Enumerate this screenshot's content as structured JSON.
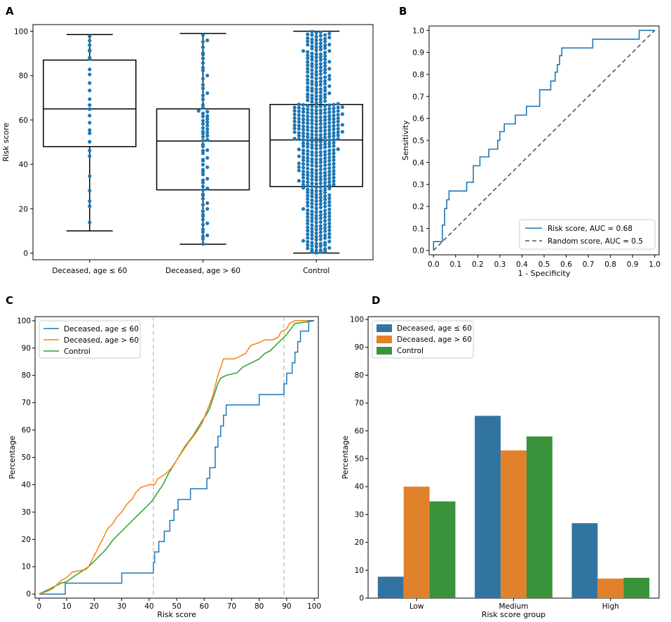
{
  "figure": {
    "panels": {
      "a": "A",
      "b": "B",
      "c": "C",
      "d": "D"
    }
  },
  "chart_data": [
    {
      "id": "A",
      "type": "scatter",
      "title": "",
      "xlabel": "",
      "ylabel": "Risk score",
      "ylim": [
        -3,
        103
      ],
      "yticks": [
        0,
        20,
        40,
        60,
        80,
        100
      ],
      "categories": [
        "Deceased, age ≤ 60",
        "Deceased, age > 60",
        "Control"
      ],
      "boxplots": [
        {
          "category": "Deceased, age ≤ 60",
          "whisker_low": 10,
          "q1": 48,
          "median": 65,
          "q3": 87,
          "whisker_high": 98.5
        },
        {
          "category": "Deceased, age > 60",
          "whisker_low": 4,
          "q1": 28.5,
          "median": 50.5,
          "q3": 65,
          "whisker_high": 99
        },
        {
          "category": "Control",
          "whisker_low": 0,
          "q1": 30,
          "median": 51,
          "q3": 67,
          "whisker_high": 100
        }
      ],
      "swarm_counts": [
        26,
        75,
        460
      ],
      "point_color": "#1f77b4"
    },
    {
      "id": "B",
      "type": "line",
      "title": "",
      "xlabel": "1 - Specificity",
      "ylabel": "Sensitivity",
      "xlim": [
        -0.02,
        1.02
      ],
      "ylim": [
        -0.02,
        1.02
      ],
      "ticks": [
        0.0,
        0.1,
        0.2,
        0.3,
        0.4,
        0.5,
        0.6,
        0.7,
        0.8,
        0.9,
        1.0
      ],
      "legend_position": "lower-right",
      "series": [
        {
          "name": "Risk score, AUC = 0.68",
          "color": "#1f77b4",
          "dash": false,
          "points": [
            [
              0,
              0
            ],
            [
              0,
              0.04
            ],
            [
              0.04,
              0.04
            ],
            [
              0.04,
              0.115
            ],
            [
              0.05,
              0.115
            ],
            [
              0.05,
              0.19
            ],
            [
              0.06,
              0.19
            ],
            [
              0.06,
              0.23
            ],
            [
              0.07,
              0.23
            ],
            [
              0.07,
              0.27
            ],
            [
              0.15,
              0.27
            ],
            [
              0.15,
              0.31
            ],
            [
              0.18,
              0.31
            ],
            [
              0.18,
              0.385
            ],
            [
              0.21,
              0.385
            ],
            [
              0.21,
              0.425
            ],
            [
              0.25,
              0.425
            ],
            [
              0.25,
              0.46
            ],
            [
              0.29,
              0.46
            ],
            [
              0.29,
              0.5
            ],
            [
              0.3,
              0.5
            ],
            [
              0.3,
              0.54
            ],
            [
              0.32,
              0.54
            ],
            [
              0.32,
              0.575
            ],
            [
              0.37,
              0.575
            ],
            [
              0.37,
              0.615
            ],
            [
              0.42,
              0.615
            ],
            [
              0.42,
              0.655
            ],
            [
              0.48,
              0.655
            ],
            [
              0.48,
              0.73
            ],
            [
              0.53,
              0.73
            ],
            [
              0.53,
              0.77
            ],
            [
              0.55,
              0.77
            ],
            [
              0.55,
              0.81
            ],
            [
              0.56,
              0.81
            ],
            [
              0.56,
              0.845
            ],
            [
              0.57,
              0.845
            ],
            [
              0.57,
              0.885
            ],
            [
              0.58,
              0.885
            ],
            [
              0.58,
              0.92
            ],
            [
              0.72,
              0.92
            ],
            [
              0.72,
              0.96
            ],
            [
              0.93,
              0.96
            ],
            [
              0.93,
              1.0
            ],
            [
              1.0,
              1.0
            ]
          ]
        },
        {
          "name": "Random score, AUC = 0.5",
          "color": "#555555",
          "dash": true,
          "points": [
            [
              0,
              0
            ],
            [
              1,
              1
            ]
          ]
        }
      ]
    },
    {
      "id": "C",
      "type": "line",
      "title": "",
      "xlabel": "Risk score",
      "ylabel": "Percentage",
      "xlim": [
        -1.5,
        101.5
      ],
      "ylim": [
        -1.5,
        101.5
      ],
      "xticks": [
        0,
        10,
        20,
        30,
        40,
        50,
        60,
        70,
        80,
        90,
        100
      ],
      "yticks": [
        0,
        10,
        20,
        30,
        40,
        50,
        60,
        70,
        80,
        90,
        100
      ],
      "reference_lines_x": [
        41.5,
        89
      ],
      "legend_position": "top-left",
      "series": [
        {
          "name": "Deceased, age ≤ 60",
          "color": "#1f77b4",
          "step": true,
          "points": [
            [
              0,
              0
            ],
            [
              9.5,
              0
            ],
            [
              9.5,
              4
            ],
            [
              30,
              4
            ],
            [
              30,
              7.7
            ],
            [
              41.5,
              7.7
            ],
            [
              41.5,
              11.5
            ],
            [
              42,
              11.5
            ],
            [
              42,
              15.4
            ],
            [
              43.5,
              15.4
            ],
            [
              43.5,
              19.2
            ],
            [
              45.5,
              19.2
            ],
            [
              45.5,
              23
            ],
            [
              47.5,
              23
            ],
            [
              47.5,
              26.9
            ],
            [
              49,
              26.9
            ],
            [
              49,
              30.8
            ],
            [
              50.5,
              30.8
            ],
            [
              50.5,
              34.6
            ],
            [
              55,
              34.6
            ],
            [
              55,
              38.5
            ],
            [
              61,
              38.5
            ],
            [
              61,
              42.3
            ],
            [
              62,
              42.3
            ],
            [
              62,
              46.2
            ],
            [
              64,
              46.2
            ],
            [
              64,
              53.8
            ],
            [
              65,
              53.8
            ],
            [
              65,
              57.7
            ],
            [
              66,
              57.7
            ],
            [
              66,
              61.5
            ],
            [
              67,
              61.5
            ],
            [
              67,
              65.4
            ],
            [
              68,
              65.4
            ],
            [
              68,
              69.2
            ],
            [
              80,
              69.2
            ],
            [
              80,
              73
            ],
            [
              89,
              73
            ],
            [
              89,
              76.9
            ],
            [
              90,
              76.9
            ],
            [
              90,
              80.8
            ],
            [
              92,
              80.8
            ],
            [
              92,
              84.6
            ],
            [
              93,
              84.6
            ],
            [
              93,
              88.5
            ],
            [
              94,
              88.5
            ],
            [
              94,
              92.3
            ],
            [
              95,
              92.3
            ],
            [
              95,
              96.2
            ],
            [
              98,
              96.2
            ],
            [
              98,
              100
            ],
            [
              100,
              100
            ]
          ]
        },
        {
          "name": "Deceased, age > 60",
          "color": "#ff7f0e",
          "step": false,
          "points": [
            [
              0,
              0
            ],
            [
              3,
              1
            ],
            [
              5,
              2
            ],
            [
              6,
              3
            ],
            [
              7,
              4
            ],
            [
              8,
              5
            ],
            [
              10,
              6
            ],
            [
              11,
              7
            ],
            [
              12,
              8
            ],
            [
              17,
              9
            ],
            [
              18,
              10
            ],
            [
              19,
              12
            ],
            [
              20,
              14
            ],
            [
              21,
              16
            ],
            [
              22,
              18
            ],
            [
              23,
              20
            ],
            [
              24,
              22
            ],
            [
              25,
              24
            ],
            [
              27,
              26
            ],
            [
              28,
              28
            ],
            [
              30,
              30
            ],
            [
              32,
              33
            ],
            [
              34,
              35
            ],
            [
              35,
              37
            ],
            [
              37,
              39
            ],
            [
              40,
              40
            ],
            [
              42,
              40
            ],
            [
              43,
              42
            ],
            [
              46,
              44
            ],
            [
              48,
              46
            ],
            [
              50,
              49
            ],
            [
              52,
              52
            ],
            [
              54,
              55
            ],
            [
              57,
              59
            ],
            [
              59,
              62
            ],
            [
              61,
              67
            ],
            [
              63,
              72
            ],
            [
              64,
              76
            ],
            [
              65,
              80
            ],
            [
              66,
              83
            ],
            [
              67,
              86
            ],
            [
              71,
              86
            ],
            [
              73,
              87
            ],
            [
              75,
              88
            ],
            [
              77,
              91
            ],
            [
              80,
              92
            ],
            [
              82,
              93
            ],
            [
              85,
              93
            ],
            [
              87,
              94
            ],
            [
              88,
              96
            ],
            [
              90,
              97
            ],
            [
              91,
              99
            ],
            [
              93,
              100
            ],
            [
              100,
              100
            ]
          ]
        },
        {
          "name": "Control",
          "color": "#2ca02c",
          "step": false,
          "points": [
            [
              0,
              0
            ],
            [
              2,
              1
            ],
            [
              4,
              2
            ],
            [
              6,
              3
            ],
            [
              8,
              4
            ],
            [
              10,
              4.5
            ],
            [
              12,
              6
            ],
            [
              15,
              8
            ],
            [
              18,
              10
            ],
            [
              21,
              13
            ],
            [
              24,
              16
            ],
            [
              27,
              20
            ],
            [
              30,
              23
            ],
            [
              33,
              26
            ],
            [
              36,
              29
            ],
            [
              39,
              32
            ],
            [
              41,
              34
            ],
            [
              43,
              37
            ],
            [
              45,
              40
            ],
            [
              47,
              44
            ],
            [
              50,
              49
            ],
            [
              53,
              54
            ],
            [
              56,
              58
            ],
            [
              59,
              63
            ],
            [
              61,
              66
            ],
            [
              62,
              68
            ],
            [
              63,
              71
            ],
            [
              64,
              74
            ],
            [
              65,
              77
            ],
            [
              66,
              79
            ],
            [
              68,
              80
            ],
            [
              70,
              80.5
            ],
            [
              72,
              81
            ],
            [
              74,
              83
            ],
            [
              76,
              84
            ],
            [
              78,
              85
            ],
            [
              80,
              86
            ],
            [
              82,
              88
            ],
            [
              84,
              89
            ],
            [
              86,
              91
            ],
            [
              88,
              93
            ],
            [
              90,
              95
            ],
            [
              93,
              99
            ],
            [
              97,
              99.5
            ],
            [
              100,
              100
            ]
          ]
        }
      ]
    },
    {
      "id": "D",
      "type": "bar",
      "title": "",
      "xlabel": "Risk score group",
      "ylabel": "Percentage",
      "ylim": [
        0,
        101
      ],
      "yticks": [
        0,
        10,
        20,
        30,
        40,
        50,
        60,
        70,
        80,
        90,
        100
      ],
      "categories": [
        "Low",
        "Medium",
        "High"
      ],
      "legend_position": "top-left",
      "series": [
        {
          "name": "Deceased, age ≤ 60",
          "color": "#3274a1",
          "values": [
            7.7,
            65.4,
            26.9
          ]
        },
        {
          "name": "Deceased, age > 60",
          "color": "#e1812c",
          "values": [
            40,
            53,
            7
          ]
        },
        {
          "name": "Control",
          "color": "#3a923a",
          "values": [
            34.7,
            58,
            7.3
          ]
        }
      ]
    }
  ]
}
